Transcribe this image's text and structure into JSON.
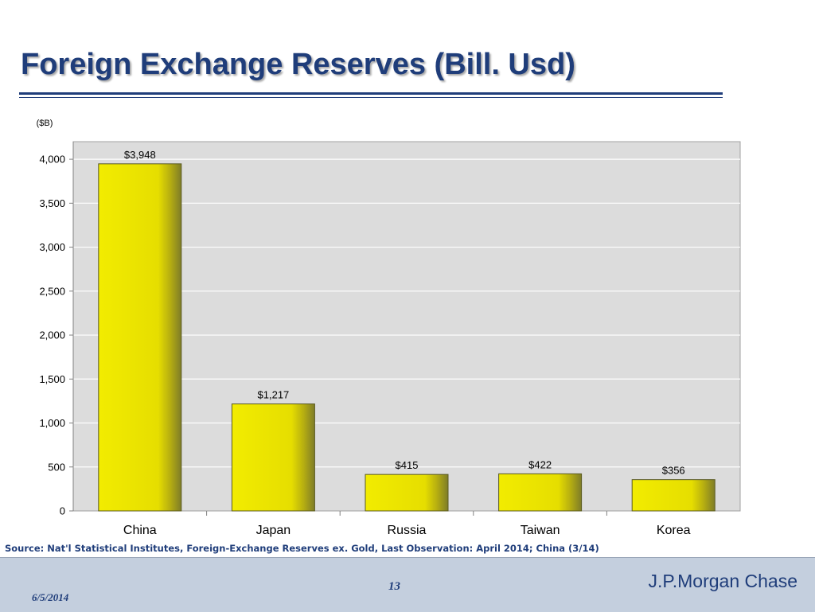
{
  "slide": {
    "title": "Foreign Exchange Reserves (Bill. Usd)",
    "source": "Source: Nat'l Statistical Institutes, Foreign-Exchange Reserves ex. Gold, Last Observation: April 2014; China (3/14)",
    "footer": {
      "date": "6/5/2014",
      "page_number": "13",
      "brand": "J.P.Morgan Chase"
    }
  },
  "chart_data": {
    "type": "bar",
    "title": "",
    "ylabel": "($B)",
    "xlabel": "",
    "categories": [
      "China",
      "Japan",
      "Russia",
      "Taiwan",
      "Korea"
    ],
    "values": [
      3948,
      1217,
      415,
      422,
      356
    ],
    "data_labels": [
      "$3,948",
      "$1,217",
      "$415",
      "$422",
      "$356"
    ],
    "y_ticks": [
      0,
      500,
      1000,
      1500,
      2000,
      2500,
      3000,
      3500,
      4000
    ],
    "y_tick_labels": [
      "0",
      "500",
      "1,000",
      "1,500",
      "2,000",
      "2,500",
      "3,000",
      "3,500",
      "4,000"
    ],
    "ylim": [
      0,
      4200
    ],
    "grid": true,
    "legend": "none",
    "colors": {
      "bar": "#e8e000",
      "bar_shade": "#8c8a20",
      "plot_background": "#dcdcdc",
      "gridline": "#ffffff",
      "title": "#1f3d7a"
    }
  }
}
